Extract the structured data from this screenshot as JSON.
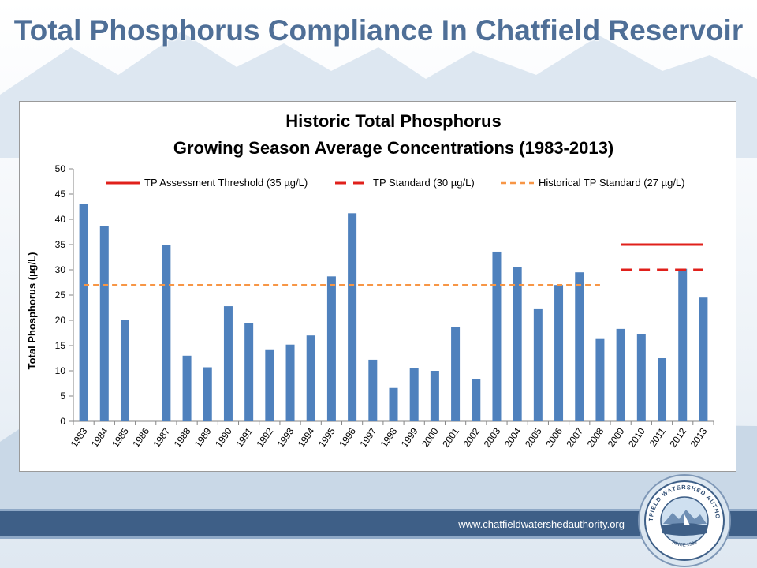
{
  "slide": {
    "title": "Total Phosphorus Compliance In Chatfield Reservoir",
    "footer_url": "www.chatfieldwatershedauthority.org",
    "seal_text_top": "CHATFIELD WATERSHED AUTHORITY",
    "seal_text_bottom": "SINCE 1984"
  },
  "colors": {
    "title": "#4f6f97",
    "bar": "#4f81bd",
    "threshold": "#e0201b",
    "standard": "#e0201b",
    "historical": "#f79646",
    "footer": "#3e5f87"
  },
  "chart_data": {
    "type": "bar",
    "title": "Historic Total Phosphorus",
    "subtitle": "Growing Season Average Concentrations (1983-2013)",
    "ylabel": "Total Phosphorus (µg/L)",
    "xlabel": "",
    "ylim": [
      0,
      50
    ],
    "yticks": [
      0,
      5,
      10,
      15,
      20,
      25,
      30,
      35,
      40,
      45,
      50
    ],
    "grid": false,
    "legend_position": "top",
    "categories": [
      "1983",
      "1984",
      "1985",
      "1986",
      "1987",
      "1988",
      "1989",
      "1990",
      "1991",
      "1992",
      "1993",
      "1994",
      "1995",
      "1996",
      "1997",
      "1998",
      "1999",
      "2000",
      "2001",
      "2002",
      "2003",
      "2004",
      "2005",
      "2006",
      "2007",
      "2008",
      "2009",
      "2010",
      "2011",
      "2012",
      "2013"
    ],
    "values": [
      43,
      38.7,
      20,
      null,
      35,
      13,
      10.7,
      22.8,
      19.4,
      14.1,
      15.2,
      17,
      28.7,
      41.2,
      12.2,
      6.6,
      10.5,
      10,
      18.6,
      8.3,
      33.6,
      30.6,
      22.2,
      27,
      29.5,
      16.3,
      18.3,
      17.3,
      12.5,
      30.2,
      24.5
    ],
    "reference_lines": [
      {
        "name": "TP Assessment Threshold (35 µg/L)",
        "value": 35,
        "style": "solid",
        "from": "2009",
        "to": "2013"
      },
      {
        "name": "TP Standard (30 µg/L)",
        "value": 30,
        "style": "dashed",
        "from": "2009",
        "to": "2013"
      },
      {
        "name": "Historical TP Standard (27 µg/L)",
        "value": 27,
        "style": "dotted",
        "from": "1983",
        "to": "2008"
      }
    ]
  }
}
